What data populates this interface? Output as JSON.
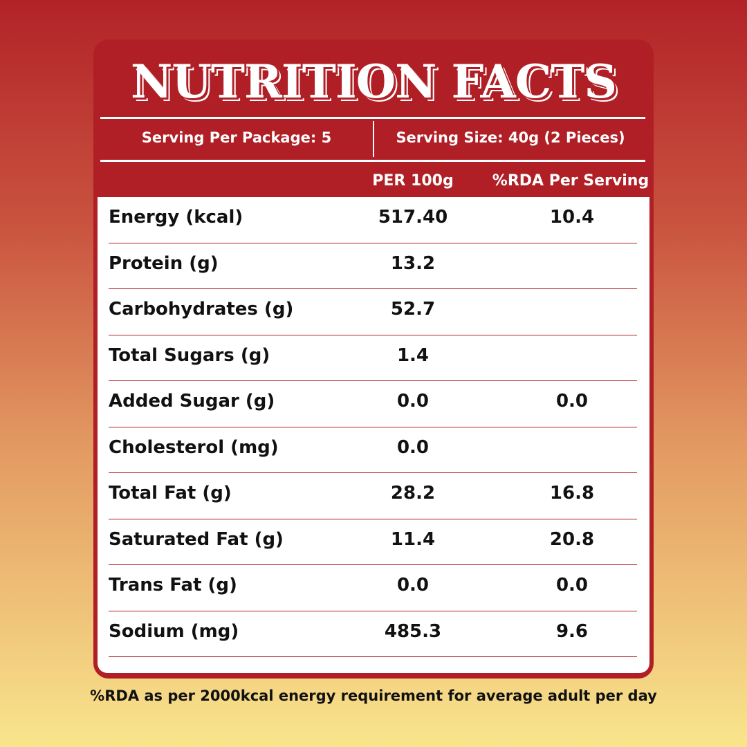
{
  "title": "NUTRITION FACTS",
  "serving_per_package": "Serving Per Package: 5",
  "serving_size": "Serving Size: 40g (2 Pieces)",
  "columns": [
    "PER 100g",
    "%RDA Per Serving"
  ],
  "rows": [
    {
      "label": "Energy (kcal)",
      "per100g": "517.40",
      "rda": "10.4"
    },
    {
      "label": "Protein (g)",
      "per100g": "13.2",
      "rda": ""
    },
    {
      "label": "Carbohydrates (g)",
      "per100g": "52.7",
      "rda": ""
    },
    {
      "label": "Total Sugars (g)",
      "per100g": "1.4",
      "rda": ""
    },
    {
      "label": "Added Sugar (g)",
      "per100g": "0.0",
      "rda": "0.0"
    },
    {
      "label": "Cholesterol (mg)",
      "per100g": "0.0",
      "rda": ""
    },
    {
      "label": "Total Fat (g)",
      "per100g": "28.2",
      "rda": "16.8"
    },
    {
      "label": "Saturated Fat (g)",
      "per100g": "11.4",
      "rda": "20.8"
    },
    {
      "label": "Trans Fat (g)",
      "per100g": "0.0",
      "rda": "0.0"
    },
    {
      "label": "Sodium (mg)",
      "per100g": "485.3",
      "rda": "9.6"
    }
  ],
  "footnote": "%RDA as per 2000kcal energy requirement for average adult per day",
  "colors": {
    "brand_red": "#b01f25",
    "bg_top": "#b22228",
    "bg_bottom": "#f9e58c"
  }
}
